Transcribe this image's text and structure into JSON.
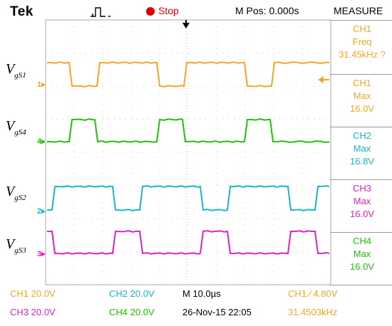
{
  "header": {
    "brand": "Tek",
    "trigger_icon": "pulse-trigger-icon",
    "run_state": "Stop",
    "m_pos": "M Pos: 0.000s",
    "panel_title": "MEASURE"
  },
  "signals": [
    {
      "name": "V",
      "sub": "gS1",
      "channel_marker": "1",
      "color": "#f5a623"
    },
    {
      "name": "V",
      "sub": "gS4",
      "channel_marker": "4",
      "color": "#22c00a"
    },
    {
      "name": "V",
      "sub": "gS2",
      "channel_marker": "2",
      "color": "#1ab7c7"
    },
    {
      "name": "V",
      "sub": "gS3",
      "channel_marker": "3",
      "color": "#e020c8"
    }
  ],
  "measurements": [
    {
      "channel": "CH1",
      "type": "Freq",
      "value": "31.45kHz ?",
      "color": "#f5a623"
    },
    {
      "channel": "CH1",
      "type": "Max",
      "value": "16.0V",
      "color": "#f5a623"
    },
    {
      "channel": "CH2",
      "type": "Max",
      "value": "16.8V",
      "color": "#1ab7c7"
    },
    {
      "channel": "CH3",
      "type": "Max",
      "value": "16.0V",
      "color": "#e020c8"
    },
    {
      "channel": "CH4",
      "type": "Max",
      "value": "16.0V",
      "color": "#22c00a"
    }
  ],
  "footer": {
    "ch1_scale": "CH1  20.0V",
    "ch2_scale": "CH2  20.0V",
    "ch3_scale": "CH3  20.0V",
    "ch4_scale": "CH4  20.0V",
    "timebase": "M 10.0µs",
    "trigger": "CH1  ∕  4.80V",
    "datetime": "26-Nov-15 22:05",
    "trigger_freq": "31.4503kHz"
  },
  "colors": {
    "ch1": "#f5a623",
    "ch2": "#1ab7c7",
    "ch3": "#e020c8",
    "ch4": "#22c00a",
    "grid": "#c8c8c8",
    "stop": "#e00000"
  }
}
